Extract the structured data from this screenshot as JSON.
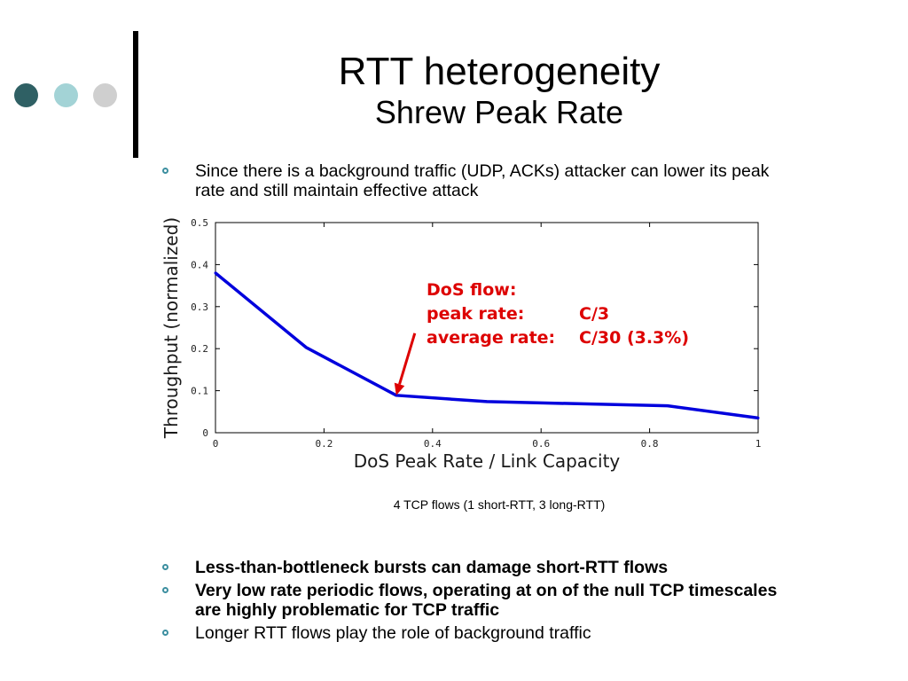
{
  "title": "RTT heterogeneity",
  "subtitle": "Shrew Peak Rate",
  "bullets_top": [
    "Since there is a background traffic (UDP, ACKs) attacker can lower its peak rate and still maintain effective attack"
  ],
  "bullets_bottom": [
    {
      "text": "Less-than-bottleneck bursts can damage short-RTT flows",
      "bold": true
    },
    {
      "text": "Very low rate periodic flows, operating at on of the null TCP timescales are highly problematic for TCP traffic",
      "bold": true
    },
    {
      "text": "Longer RTT flows play the role of background traffic",
      "bold": false
    }
  ],
  "caption": "4 TCP flows (1 short-RTT, 3 long-RTT)",
  "colors": {
    "series": "#0000dd",
    "annotation": "#dd0000",
    "bullet": "#3c8fa0",
    "dot_dark": "#2f6064",
    "dot_light": "#a3d3d6",
    "dot_gray": "#cfcfcf"
  },
  "chart_data": {
    "type": "line",
    "xlabel": "DoS Peak Rate / Link Capacity",
    "ylabel": "Throughput (normalized)",
    "xlim": [
      0,
      1
    ],
    "ylim": [
      0,
      0.5
    ],
    "xticks": [
      "0",
      "0.2",
      "0.4",
      "0.6",
      "0.8",
      "1"
    ],
    "yticks": [
      "0",
      "0.1",
      "0.2",
      "0.3",
      "0.4",
      "0.5"
    ],
    "grid": false,
    "series": [
      {
        "x": [
          0,
          0.167,
          0.333,
          0.5,
          0.667,
          0.833,
          1
        ],
        "y": [
          0.38,
          0.203,
          0.089,
          0.074,
          0.069,
          0.064,
          0.035
        ]
      }
    ],
    "annotation": {
      "lines": [
        [
          "DoS flow:",
          ""
        ],
        [
          "peak rate:",
          "C/3"
        ],
        [
          "average rate:",
          "C/30 (3.3%)"
        ]
      ],
      "arrow_to": {
        "x": 0.333,
        "y": 0.089
      }
    }
  }
}
